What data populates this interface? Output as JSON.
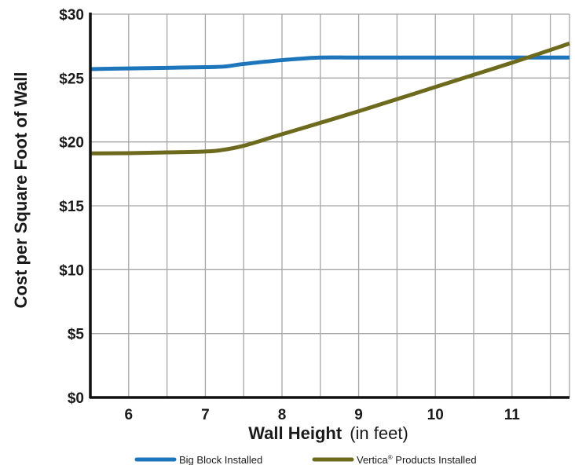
{
  "chart_data": {
    "type": "line",
    "xlabel_bold": "Wall Height",
    "xlabel_unit": "(in feet)",
    "ylabel": "Cost per Square Foot of Wall",
    "x_ticks": [
      "6",
      "7",
      "8",
      "9",
      "10",
      "11"
    ],
    "y_ticks": [
      "$0",
      "$5",
      "$10",
      "$15",
      "$20",
      "$25",
      "$30"
    ],
    "xlim": [
      5.5,
      11.75
    ],
    "ylim": [
      0,
      30
    ],
    "grid": true,
    "legend_position": "bottom",
    "series": [
      {
        "name": "Big Block Installed",
        "color": "#1d75bc",
        "x": [
          5.5,
          6,
          6.5,
          7,
          7.25,
          7.5,
          8,
          8.5,
          9,
          10,
          11,
          11.75
        ],
        "y": [
          25.7,
          25.75,
          25.8,
          25.85,
          25.9,
          26.1,
          26.4,
          26.6,
          26.6,
          26.6,
          26.6,
          26.6
        ]
      },
      {
        "name": "Vertica",
        "name_sup": "®",
        "name_suffix": " Products Installed",
        "color": "#6d6a1e",
        "x": [
          5.5,
          6,
          6.5,
          7,
          7.2,
          7.5,
          8,
          9,
          10,
          11,
          11.75
        ],
        "y": [
          19.1,
          19.12,
          19.18,
          19.25,
          19.35,
          19.7,
          20.6,
          22.4,
          24.3,
          26.2,
          27.7
        ]
      }
    ]
  }
}
